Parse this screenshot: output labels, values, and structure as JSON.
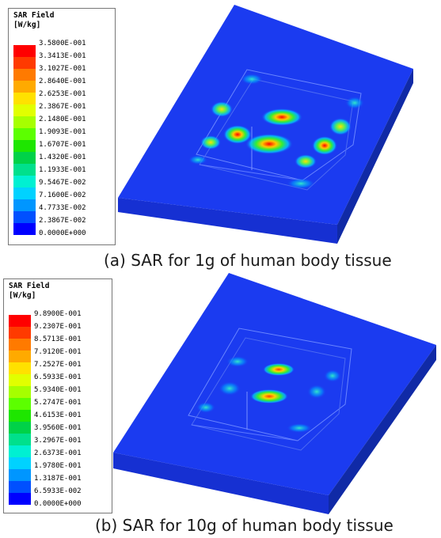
{
  "panels": [
    {
      "legend": {
        "title_line1": "SAR Field",
        "title_line2": "[W/kg]",
        "ticks": [
          "3.5800E-001",
          "3.3413E-001",
          "3.1027E-001",
          "2.8640E-001",
          "2.6253E-001",
          "2.3867E-001",
          "2.1480E-001",
          "1.9093E-001",
          "1.6707E-001",
          "1.4320E-001",
          "1.1933E-001",
          "9.5467E-002",
          "7.1600E-002",
          "4.7733E-002",
          "2.3867E-002",
          "0.0000E+000"
        ]
      },
      "caption": "(a) SAR for 1g of human body tissue"
    },
    {
      "legend": {
        "title_line1": "SAR Field",
        "title_line2": "[W/kg]",
        "ticks": [
          "9.8900E-001",
          "9.2307E-001",
          "8.5713E-001",
          "7.9120E-001",
          "7.2527E-001",
          "6.5933E-001",
          "5.9340E-001",
          "5.2747E-001",
          "4.6153E-001",
          "3.9560E-001",
          "3.2967E-001",
          "2.6373E-001",
          "1.9780E-001",
          "1.3187E-001",
          "6.5933E-002",
          "0.0000E+000"
        ]
      },
      "caption": "(b) SAR for 10g of human body tissue"
    }
  ],
  "colors": {
    "scale": [
      "#ff0000",
      "#ff3a00",
      "#ff7a00",
      "#ffaa00",
      "#ffe100",
      "#e1ff00",
      "#a6ff00",
      "#5cff00",
      "#1ee600",
      "#00d248",
      "#00e08c",
      "#00f0d2",
      "#00d2ff",
      "#0096ff",
      "#0050ff",
      "#0000ff"
    ],
    "body_top": "#1b3bf0",
    "body_left": "#1630d2",
    "body_right": "#102aa6"
  }
}
